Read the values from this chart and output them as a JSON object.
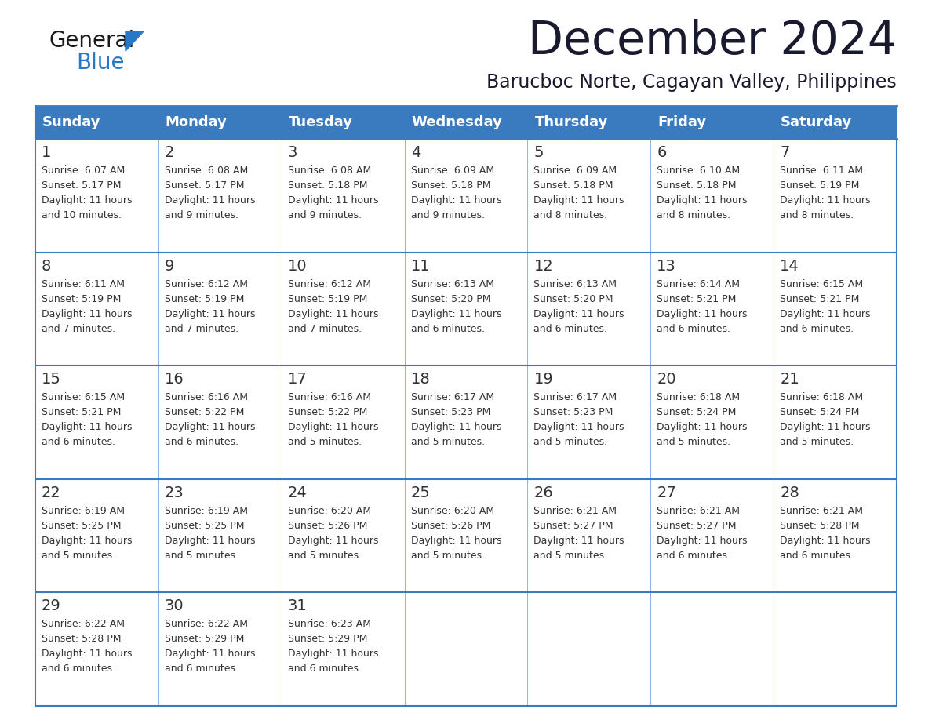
{
  "title": "December 2024",
  "subtitle": "Barucboc Norte, Cagayan Valley, Philippines",
  "days_of_week": [
    "Sunday",
    "Monday",
    "Tuesday",
    "Wednesday",
    "Thursday",
    "Friday",
    "Saturday"
  ],
  "header_bg": "#3a7abf",
  "header_text": "#ffffff",
  "cell_bg": "#ffffff",
  "cell_text": "#333333",
  "border_color": "#3a7abf",
  "logo_text_color": "#1a1a1a",
  "logo_blue_color": "#2878c8",
  "title_color": "#1a1a2e",
  "calendar_data": [
    [
      {
        "day": 1,
        "sunrise": "6:07 AM",
        "sunset": "5:17 PM",
        "daylight": "11 hours and 10 minutes."
      },
      {
        "day": 2,
        "sunrise": "6:08 AM",
        "sunset": "5:17 PM",
        "daylight": "11 hours and 9 minutes."
      },
      {
        "day": 3,
        "sunrise": "6:08 AM",
        "sunset": "5:18 PM",
        "daylight": "11 hours and 9 minutes."
      },
      {
        "day": 4,
        "sunrise": "6:09 AM",
        "sunset": "5:18 PM",
        "daylight": "11 hours and 9 minutes."
      },
      {
        "day": 5,
        "sunrise": "6:09 AM",
        "sunset": "5:18 PM",
        "daylight": "11 hours and 8 minutes."
      },
      {
        "day": 6,
        "sunrise": "6:10 AM",
        "sunset": "5:18 PM",
        "daylight": "11 hours and 8 minutes."
      },
      {
        "day": 7,
        "sunrise": "6:11 AM",
        "sunset": "5:19 PM",
        "daylight": "11 hours and 8 minutes."
      }
    ],
    [
      {
        "day": 8,
        "sunrise": "6:11 AM",
        "sunset": "5:19 PM",
        "daylight": "11 hours and 7 minutes."
      },
      {
        "day": 9,
        "sunrise": "6:12 AM",
        "sunset": "5:19 PM",
        "daylight": "11 hours and 7 minutes."
      },
      {
        "day": 10,
        "sunrise": "6:12 AM",
        "sunset": "5:19 PM",
        "daylight": "11 hours and 7 minutes."
      },
      {
        "day": 11,
        "sunrise": "6:13 AM",
        "sunset": "5:20 PM",
        "daylight": "11 hours and 6 minutes."
      },
      {
        "day": 12,
        "sunrise": "6:13 AM",
        "sunset": "5:20 PM",
        "daylight": "11 hours and 6 minutes."
      },
      {
        "day": 13,
        "sunrise": "6:14 AM",
        "sunset": "5:21 PM",
        "daylight": "11 hours and 6 minutes."
      },
      {
        "day": 14,
        "sunrise": "6:15 AM",
        "sunset": "5:21 PM",
        "daylight": "11 hours and 6 minutes."
      }
    ],
    [
      {
        "day": 15,
        "sunrise": "6:15 AM",
        "sunset": "5:21 PM",
        "daylight": "11 hours and 6 minutes."
      },
      {
        "day": 16,
        "sunrise": "6:16 AM",
        "sunset": "5:22 PM",
        "daylight": "11 hours and 6 minutes."
      },
      {
        "day": 17,
        "sunrise": "6:16 AM",
        "sunset": "5:22 PM",
        "daylight": "11 hours and 5 minutes."
      },
      {
        "day": 18,
        "sunrise": "6:17 AM",
        "sunset": "5:23 PM",
        "daylight": "11 hours and 5 minutes."
      },
      {
        "day": 19,
        "sunrise": "6:17 AM",
        "sunset": "5:23 PM",
        "daylight": "11 hours and 5 minutes."
      },
      {
        "day": 20,
        "sunrise": "6:18 AM",
        "sunset": "5:24 PM",
        "daylight": "11 hours and 5 minutes."
      },
      {
        "day": 21,
        "sunrise": "6:18 AM",
        "sunset": "5:24 PM",
        "daylight": "11 hours and 5 minutes."
      }
    ],
    [
      {
        "day": 22,
        "sunrise": "6:19 AM",
        "sunset": "5:25 PM",
        "daylight": "11 hours and 5 minutes."
      },
      {
        "day": 23,
        "sunrise": "6:19 AM",
        "sunset": "5:25 PM",
        "daylight": "11 hours and 5 minutes."
      },
      {
        "day": 24,
        "sunrise": "6:20 AM",
        "sunset": "5:26 PM",
        "daylight": "11 hours and 5 minutes."
      },
      {
        "day": 25,
        "sunrise": "6:20 AM",
        "sunset": "5:26 PM",
        "daylight": "11 hours and 5 minutes."
      },
      {
        "day": 26,
        "sunrise": "6:21 AM",
        "sunset": "5:27 PM",
        "daylight": "11 hours and 5 minutes."
      },
      {
        "day": 27,
        "sunrise": "6:21 AM",
        "sunset": "5:27 PM",
        "daylight": "11 hours and 6 minutes."
      },
      {
        "day": 28,
        "sunrise": "6:21 AM",
        "sunset": "5:28 PM",
        "daylight": "11 hours and 6 minutes."
      }
    ],
    [
      {
        "day": 29,
        "sunrise": "6:22 AM",
        "sunset": "5:28 PM",
        "daylight": "11 hours and 6 minutes."
      },
      {
        "day": 30,
        "sunrise": "6:22 AM",
        "sunset": "5:29 PM",
        "daylight": "11 hours and 6 minutes."
      },
      {
        "day": 31,
        "sunrise": "6:23 AM",
        "sunset": "5:29 PM",
        "daylight": "11 hours and 6 minutes."
      },
      null,
      null,
      null,
      null
    ]
  ]
}
